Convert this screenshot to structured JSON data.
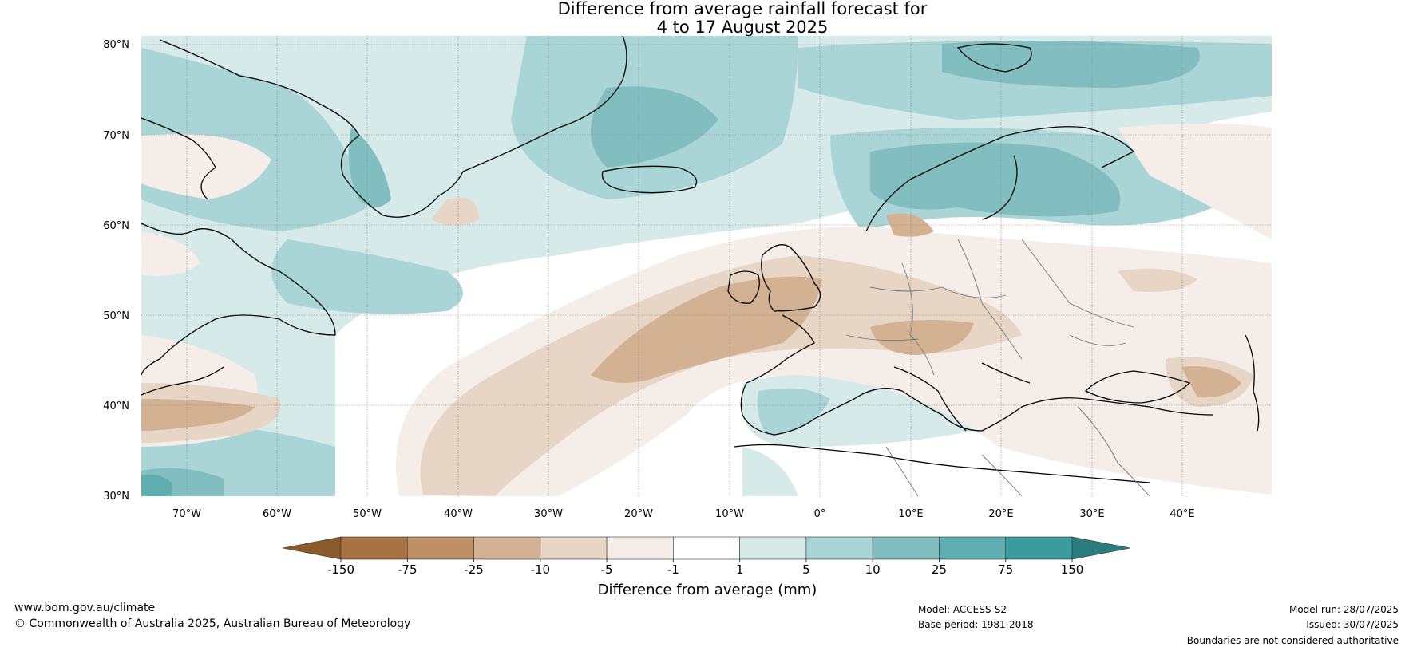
{
  "title": {
    "line1": "Difference from average rainfall forecast for",
    "line2": "4 to 17 August 2025"
  },
  "axes": {
    "lat_labels": [
      "80°N",
      "70°N",
      "60°N",
      "50°N",
      "40°N",
      "30°N"
    ],
    "lon_labels": [
      "70°W",
      "60°W",
      "50°W",
      "40°W",
      "30°W",
      "20°W",
      "10°W",
      "0°",
      "10°E",
      "20°E",
      "30°E",
      "40°E"
    ]
  },
  "colorbar": {
    "label": "Difference from average (mm)",
    "tick_labels": [
      "-150",
      "-75",
      "-25",
      "-10",
      "-5",
      "-1",
      "1",
      "5",
      "10",
      "25",
      "75",
      "150"
    ],
    "colors": [
      "#8b5a2b",
      "#a87343",
      "#bf9068",
      "#d2b293",
      "#e7d5c5",
      "#f5ede8",
      "#ffffff",
      "#d6eaea",
      "#a9d5d6",
      "#82bec0",
      "#5eaeb0",
      "#3a9c9d",
      "#2a7c7d"
    ]
  },
  "footer": {
    "website": "www.bom.gov.au/climate",
    "copyright": "© Commonwealth of Australia 2025, Australian Bureau of Meteorology",
    "model": "Model: ACCESS-S2",
    "base_period": "Base period: 1981-2018",
    "model_run": "Model run: 28/07/2025",
    "issued": "Issued: 30/07/2025",
    "disclaimer": "Boundaries are not considered authoritative"
  }
}
